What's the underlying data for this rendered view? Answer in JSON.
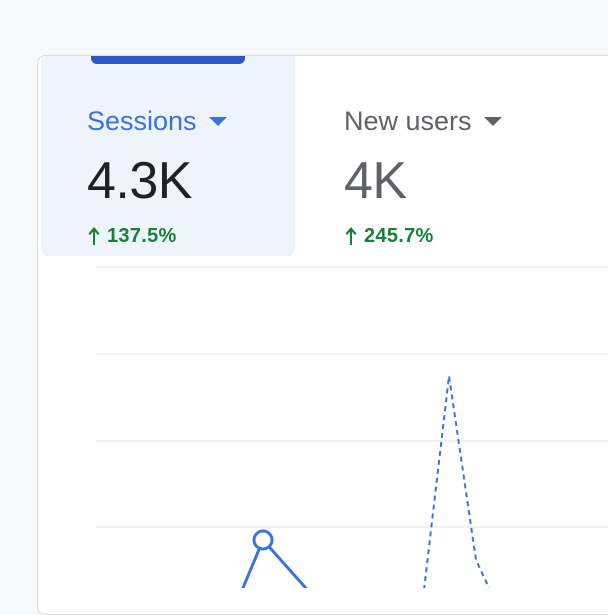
{
  "metrics": [
    {
      "label": "Sessions",
      "value": "4.3K",
      "change": "137.5%",
      "change_direction": "up",
      "selected": true
    },
    {
      "label": "New users",
      "value": "4K",
      "change": "245.7%",
      "change_direction": "up",
      "selected": false
    }
  ],
  "colors": {
    "accent": "#3b73db",
    "indicator": "#2a56c6",
    "positive": "#188038",
    "muted": "#5f6368",
    "text": "#202124",
    "selected_bg": "#eef3fc",
    "gridline": "#e0e0e0"
  },
  "icons": {
    "caret": "triangle-down",
    "change": "arrow-up"
  }
}
